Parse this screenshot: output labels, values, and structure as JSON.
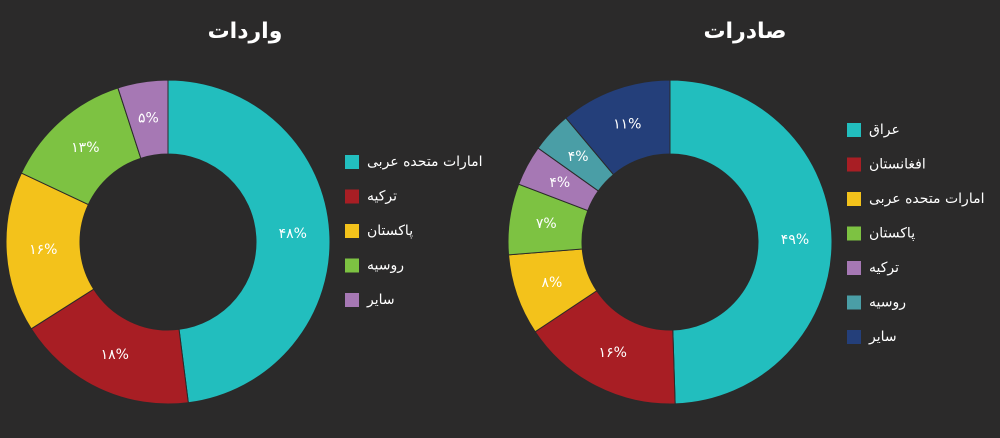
{
  "chart_data": [
    {
      "type": "pie",
      "title": "واردات",
      "categories": [
        "امارات متحده عربی",
        "ترکیه",
        "پاکستان",
        "روسیه",
        "سایر"
      ],
      "values": [
        48,
        18,
        16,
        13,
        5
      ],
      "value_labels": [
        "۴۸%",
        "۱۸%",
        "۱۶%",
        "۱۳%",
        "۵%"
      ],
      "colors": [
        "#22bebe",
        "#a81e24",
        "#f3c21b",
        "#7dc242",
        "#a678b4"
      ]
    },
    {
      "type": "pie",
      "title": "صادرات",
      "categories": [
        "عراق",
        "افغانستان",
        "امارات متحده عربی",
        "پاکستان",
        "ترکیه",
        "روسیه",
        "سایر"
      ],
      "values": [
        49,
        16,
        8,
        7,
        4,
        4,
        11
      ],
      "value_labels": [
        "۴۹%",
        "۱۶%",
        "۸%",
        "۷%",
        "۴%",
        "۴%",
        "۱۱%"
      ],
      "colors": [
        "#22bebe",
        "#a81e24",
        "#f3c21b",
        "#7dc242",
        "#a678b4",
        "#4a9ea6",
        "#243f7a"
      ]
    }
  ]
}
